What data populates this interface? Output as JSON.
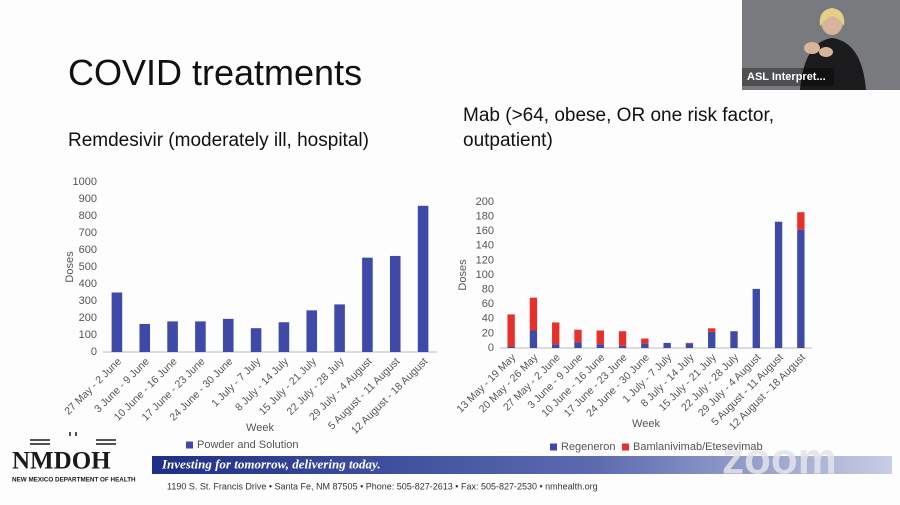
{
  "slide": {
    "title": "COVID treatments"
  },
  "video": {
    "label": "ASL Interpret..."
  },
  "chart_data": [
    {
      "type": "bar",
      "title": "Remdesivir (moderately ill, hospital)",
      "x_label": "Week",
      "y_label": "Doses",
      "categories": [
        "27 May - 2 June",
        "3 June - 9 June",
        "10 June - 16 June",
        "17 June - 23 June",
        "24 June - 30 June",
        "1 July - 7 July",
        "8 July - 14 July",
        "15 July - 21 July",
        "22 July - 28 July",
        "29 July - 4 August",
        "5 August - 11 August",
        "12 August - 18 August"
      ],
      "series": [
        {
          "name": "Powder and Solution",
          "color": "#3f49a8",
          "values": [
            350,
            165,
            180,
            180,
            195,
            140,
            175,
            245,
            280,
            555,
            565,
            860
          ]
        }
      ],
      "ylim": [
        0,
        1000
      ],
      "yticks": [
        0,
        100,
        200,
        300,
        400,
        500,
        600,
        700,
        800,
        900,
        1000
      ],
      "grid": false,
      "legend": "bottom"
    },
    {
      "type": "stacked_bar",
      "title": "Mab (>64, obese, OR one risk factor, outpatient)",
      "x_label": "Week",
      "y_label": "Doses",
      "categories": [
        "13 May - 19 May",
        "20 May - 26 May",
        "27 May - 2 June",
        "3 June - 9 June",
        "10 June - 16 June",
        "17 June - 23 June",
        "24 June - 30 June",
        "1 July - 7 July",
        "8 July - 14 July",
        "15 July - 21 July",
        "22 July - 28 July",
        "29 July - 4 August",
        "5 August - 11 August",
        "12 August - 18 August"
      ],
      "series": [
        {
          "name": "Regeneron",
          "color": "#3f49a8",
          "values": [
            2,
            24,
            5,
            8,
            5,
            3,
            6,
            7,
            6,
            22,
            23,
            81,
            173,
            162
          ]
        },
        {
          "name": "Bamlanivimab/Etesevimab",
          "color": "#e8302a",
          "values": [
            44,
            45,
            30,
            17,
            19,
            20,
            7,
            0,
            1,
            5,
            0,
            0,
            0,
            24
          ]
        }
      ],
      "ylim": [
        0,
        200
      ],
      "yticks": [
        0,
        20,
        40,
        60,
        80,
        100,
        120,
        140,
        160,
        180,
        200
      ],
      "grid": false,
      "legend": "bottom"
    }
  ],
  "footer": {
    "logo": "NMDOH",
    "logo_sub": "NEW MEXICO DEPARTMENT OF HEALTH",
    "slogan": "Investing for tomorrow, delivering today.",
    "address": "1190 S. St. Francis Drive • Santa Fe, NM 87505 • Phone: 505-827-2613 • Fax: 505-827-2530 • nmhealth.org",
    "watermark": "zoom"
  }
}
